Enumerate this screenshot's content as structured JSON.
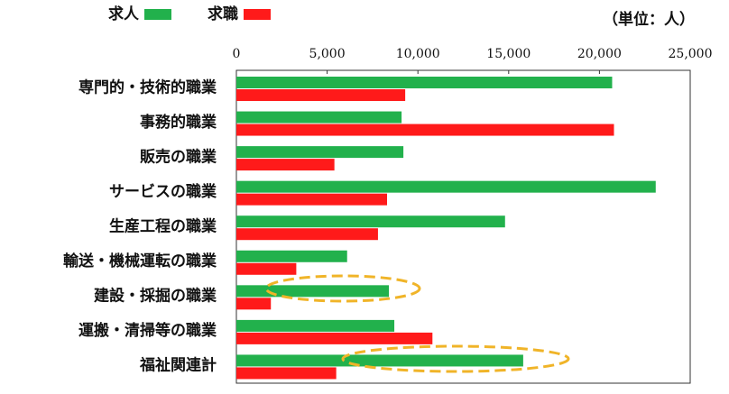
{
  "chart_data": {
    "type": "bar",
    "orientation": "horizontal",
    "unit_label": "（単位：人）",
    "categories": [
      "専門的・技術的職業",
      "事務的職業",
      "販売の職業",
      "サービスの職業",
      "生産工程の職業",
      "輸送・機械運転の職業",
      "建設・採掘の職業",
      "運搬・清掃等の職業",
      "福祉関連計"
    ],
    "series": [
      {
        "name": "求人",
        "color": "#22b14c",
        "values": [
          20700,
          9100,
          9200,
          23100,
          14800,
          6100,
          8400,
          8700,
          15800
        ]
      },
      {
        "name": "求職",
        "color": "#ff1a1a",
        "values": [
          9300,
          20800,
          5400,
          8300,
          7800,
          3300,
          1900,
          10800,
          5500
        ]
      }
    ],
    "xlim": [
      0,
      25000
    ],
    "xticks": [
      0,
      {
        "value": 5000,
        "label": "5,000"
      },
      {
        "value": 10000,
        "label": "10,000"
      },
      {
        "value": 15000,
        "label": "15,000"
      },
      {
        "value": 20000,
        "label": "20,000"
      },
      {
        "value": 25000,
        "label": "25,000"
      }
    ],
    "legend": "top-left",
    "grid": false
  }
}
